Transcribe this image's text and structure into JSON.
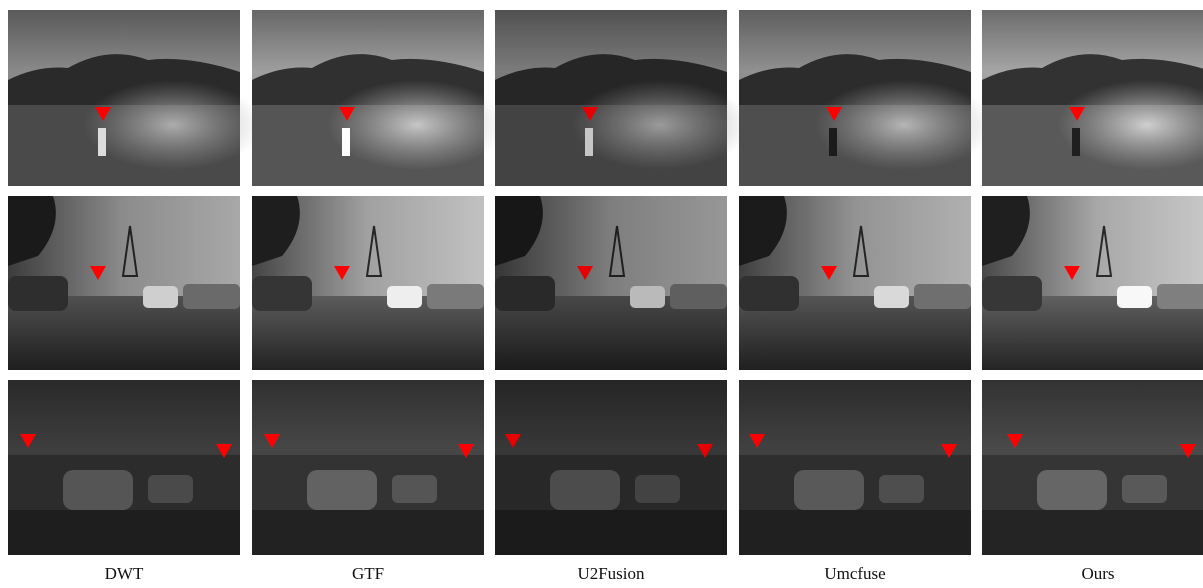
{
  "figure": {
    "columns": [
      "DWT",
      "GTF",
      "U2Fusion",
      "Umcfuse",
      "Ours"
    ]
  }
}
